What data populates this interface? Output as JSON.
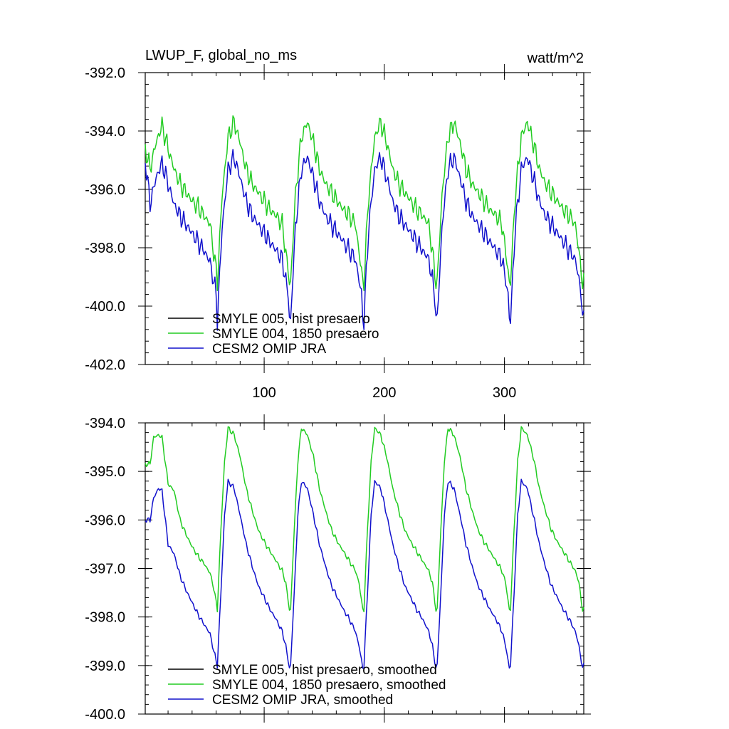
{
  "chart_data": [
    {
      "type": "line",
      "title": "LWUP_F, global_no_ms",
      "units": "watt/m^2",
      "xlim": [
        1,
        366
      ],
      "ylim": [
        -402.0,
        -392.0
      ],
      "x_ticks": [
        100,
        200,
        300
      ],
      "x_ticks_labeled": true,
      "y_ticks": [
        -392.0,
        -394.0,
        -396.0,
        -398.0,
        -400.0,
        -402.0
      ],
      "y_tick_labels": [
        "-392.0",
        "-394.0",
        "-396.0",
        "-398.0",
        "-400.0",
        "-402.0"
      ],
      "grid": false,
      "legend_placement": "bottom-left",
      "period": 61,
      "smoothed": false,
      "series": [
        {
          "name": "SMYLE 005, hist presaero",
          "color": "#000000",
          "visible": false,
          "x": [
            1,
            5,
            10,
            15,
            20,
            25,
            30,
            35,
            40,
            45,
            50,
            55,
            60,
            61,
            65,
            70,
            75,
            80,
            85,
            90,
            95,
            100,
            105,
            110,
            115,
            120,
            121
          ],
          "values": [
            -394.6,
            -395.3,
            -394.4,
            -393.8,
            -394.6,
            -395.3,
            -395.8,
            -396.1,
            -396.4,
            -396.6,
            -396.9,
            -397.2,
            -398.8,
            -399.2,
            -396.2,
            -394.2,
            -393.7,
            -394.4,
            -395.3,
            -395.8,
            -396.1,
            -396.4,
            -396.7,
            -396.9,
            -397.2,
            -398.8,
            -399.2
          ]
        },
        {
          "name": "SMYLE 004, 1850 presaero",
          "color": "#22cc22",
          "x": [
            1,
            5,
            10,
            15,
            20,
            25,
            30,
            35,
            40,
            45,
            50,
            55,
            60,
            61,
            65,
            70,
            75,
            80,
            85,
            90,
            95,
            100,
            105,
            110,
            115,
            120,
            121
          ],
          "values": [
            -394.6,
            -395.3,
            -394.4,
            -393.8,
            -394.6,
            -395.3,
            -395.8,
            -396.1,
            -396.4,
            -396.6,
            -396.9,
            -397.2,
            -398.8,
            -399.2,
            -396.2,
            -394.2,
            -393.7,
            -394.4,
            -395.3,
            -395.8,
            -396.1,
            -396.4,
            -396.7,
            -396.9,
            -397.2,
            -398.8,
            -399.2
          ]
        },
        {
          "name": "CESM2 OMIP JRA",
          "color": "#1111cc",
          "x": [
            1,
            5,
            10,
            15,
            20,
            25,
            30,
            35,
            40,
            45,
            50,
            55,
            60,
            61,
            65,
            70,
            75,
            80,
            85,
            90,
            95,
            100,
            105,
            110,
            115,
            120,
            121
          ],
          "values": [
            -395.0,
            -396.5,
            -395.6,
            -395.1,
            -395.8,
            -396.5,
            -396.9,
            -397.2,
            -397.5,
            -397.8,
            -398.1,
            -398.5,
            -399.6,
            -400.5,
            -397.3,
            -395.3,
            -394.9,
            -395.6,
            -396.4,
            -396.9,
            -397.2,
            -397.5,
            -397.8,
            -398.1,
            -398.4,
            -399.6,
            -400.4
          ]
        }
      ]
    },
    {
      "type": "line",
      "xlim": [
        1,
        366
      ],
      "ylim": [
        -400.0,
        -394.0
      ],
      "x_ticks": [
        100,
        200,
        300
      ],
      "x_ticks_labeled": false,
      "y_ticks": [
        -394.0,
        -395.0,
        -396.0,
        -397.0,
        -398.0,
        -399.0,
        -400.0
      ],
      "y_tick_labels": [
        "-394.0",
        "-395.0",
        "-396.0",
        "-397.0",
        "-398.0",
        "-399.0",
        "-400.0"
      ],
      "grid": false,
      "legend_placement": "bottom-left",
      "period": 61,
      "smoothed": true,
      "series": [
        {
          "name": "SMYLE 005, hist presaero, smoothed",
          "color": "#000000",
          "visible": false,
          "x": [
            5,
            8,
            12,
            15,
            20,
            25,
            30,
            35,
            40,
            45,
            50,
            55,
            58,
            61,
            64,
            67,
            70,
            75,
            80,
            85,
            90,
            95,
            100,
            105,
            110,
            115,
            118,
            121
          ],
          "values": [
            -394.85,
            -394.3,
            -394.25,
            -394.3,
            -395.25,
            -395.4,
            -396.0,
            -396.3,
            -396.55,
            -396.75,
            -396.9,
            -397.1,
            -397.4,
            -397.85,
            -396.2,
            -394.8,
            -394.1,
            -394.25,
            -394.7,
            -395.35,
            -395.8,
            -396.2,
            -396.45,
            -396.65,
            -396.85,
            -397.05,
            -397.3,
            -397.85
          ]
        },
        {
          "name": "SMYLE 004, 1850 presaero, smoothed",
          "color": "#22cc22",
          "x": [
            5,
            8,
            12,
            15,
            20,
            25,
            30,
            35,
            40,
            45,
            50,
            55,
            58,
            61,
            64,
            67,
            70,
            75,
            80,
            85,
            90,
            95,
            100,
            105,
            110,
            115,
            118,
            121
          ],
          "values": [
            -394.85,
            -394.3,
            -394.25,
            -394.3,
            -395.25,
            -395.4,
            -396.0,
            -396.3,
            -396.55,
            -396.75,
            -396.9,
            -397.1,
            -397.4,
            -397.85,
            -396.2,
            -394.8,
            -394.1,
            -394.25,
            -394.7,
            -395.35,
            -395.8,
            -396.2,
            -396.45,
            -396.65,
            -396.85,
            -397.05,
            -397.3,
            -397.85
          ]
        },
        {
          "name": "CESM2 OMIP JRA, smoothed",
          "color": "#1111cc",
          "x": [
            5,
            8,
            12,
            15,
            20,
            25,
            30,
            35,
            40,
            45,
            50,
            55,
            58,
            61,
            64,
            67,
            70,
            75,
            80,
            85,
            90,
            95,
            100,
            105,
            110,
            115,
            118,
            121
          ],
          "values": [
            -396.0,
            -395.55,
            -395.35,
            -395.4,
            -396.5,
            -396.7,
            -397.15,
            -397.45,
            -397.7,
            -397.95,
            -398.15,
            -398.35,
            -398.7,
            -399.0,
            -397.5,
            -395.9,
            -395.2,
            -395.35,
            -395.9,
            -396.5,
            -396.95,
            -397.35,
            -397.6,
            -397.85,
            -398.05,
            -398.3,
            -398.6,
            -399.05
          ]
        }
      ]
    }
  ]
}
